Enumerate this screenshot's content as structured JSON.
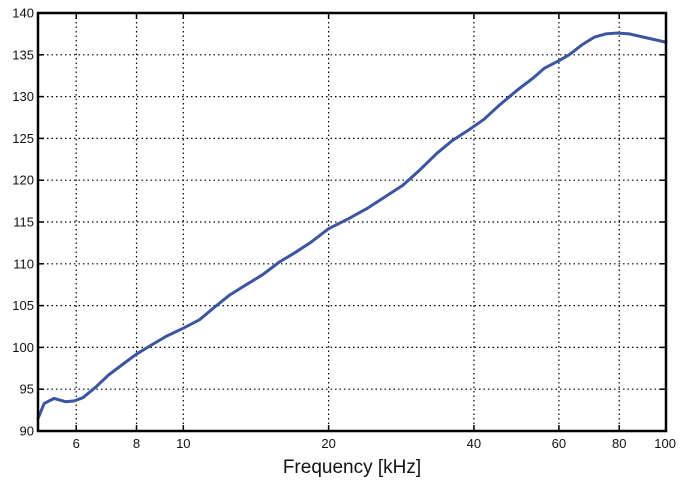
{
  "chart_data": {
    "type": "line",
    "title": "",
    "xlabel": "Frequency [kHz]",
    "ylabel": "",
    "xscale": "log",
    "xlim": [
      5,
      100
    ],
    "ylim": [
      90,
      140
    ],
    "grid": true,
    "x_ticks": [
      6,
      8,
      10,
      20,
      40,
      60,
      80,
      100
    ],
    "y_ticks": [
      90,
      95,
      100,
      105,
      110,
      115,
      120,
      125,
      130,
      135,
      140
    ],
    "line_color": "#3b55a0",
    "series": [
      {
        "x": [
          5.0,
          5.15,
          5.4,
          5.7,
          5.95,
          6.2,
          6.6,
          7.0,
          7.5,
          8.0,
          8.6,
          9.2,
          10.0,
          10.8,
          11.6,
          12.5,
          13.5,
          14.6,
          15.8,
          17.0,
          18.3,
          20.0,
          22.0,
          24.0,
          26.0,
          28.5,
          31.0,
          33.5,
          36.0,
          39.0,
          42.0,
          45.0,
          49.0,
          53.0,
          56.0,
          60.0,
          63.0,
          67.0,
          71.0,
          75.0,
          79.0,
          84.0,
          90.0,
          95.0,
          100.0
        ],
        "y": [
          91.5,
          93.3,
          93.9,
          93.5,
          93.6,
          94.0,
          95.3,
          96.7,
          98.0,
          99.2,
          100.3,
          101.3,
          102.3,
          103.3,
          104.8,
          106.3,
          107.5,
          108.7,
          110.2,
          111.3,
          112.5,
          114.2,
          115.4,
          116.6,
          117.9,
          119.4,
          121.3,
          123.2,
          124.7,
          126.0,
          127.3,
          128.9,
          130.7,
          132.2,
          133.4,
          134.3,
          135.0,
          136.2,
          137.1,
          137.5,
          137.6,
          137.5,
          137.1,
          136.8,
          136.5
        ]
      }
    ]
  }
}
